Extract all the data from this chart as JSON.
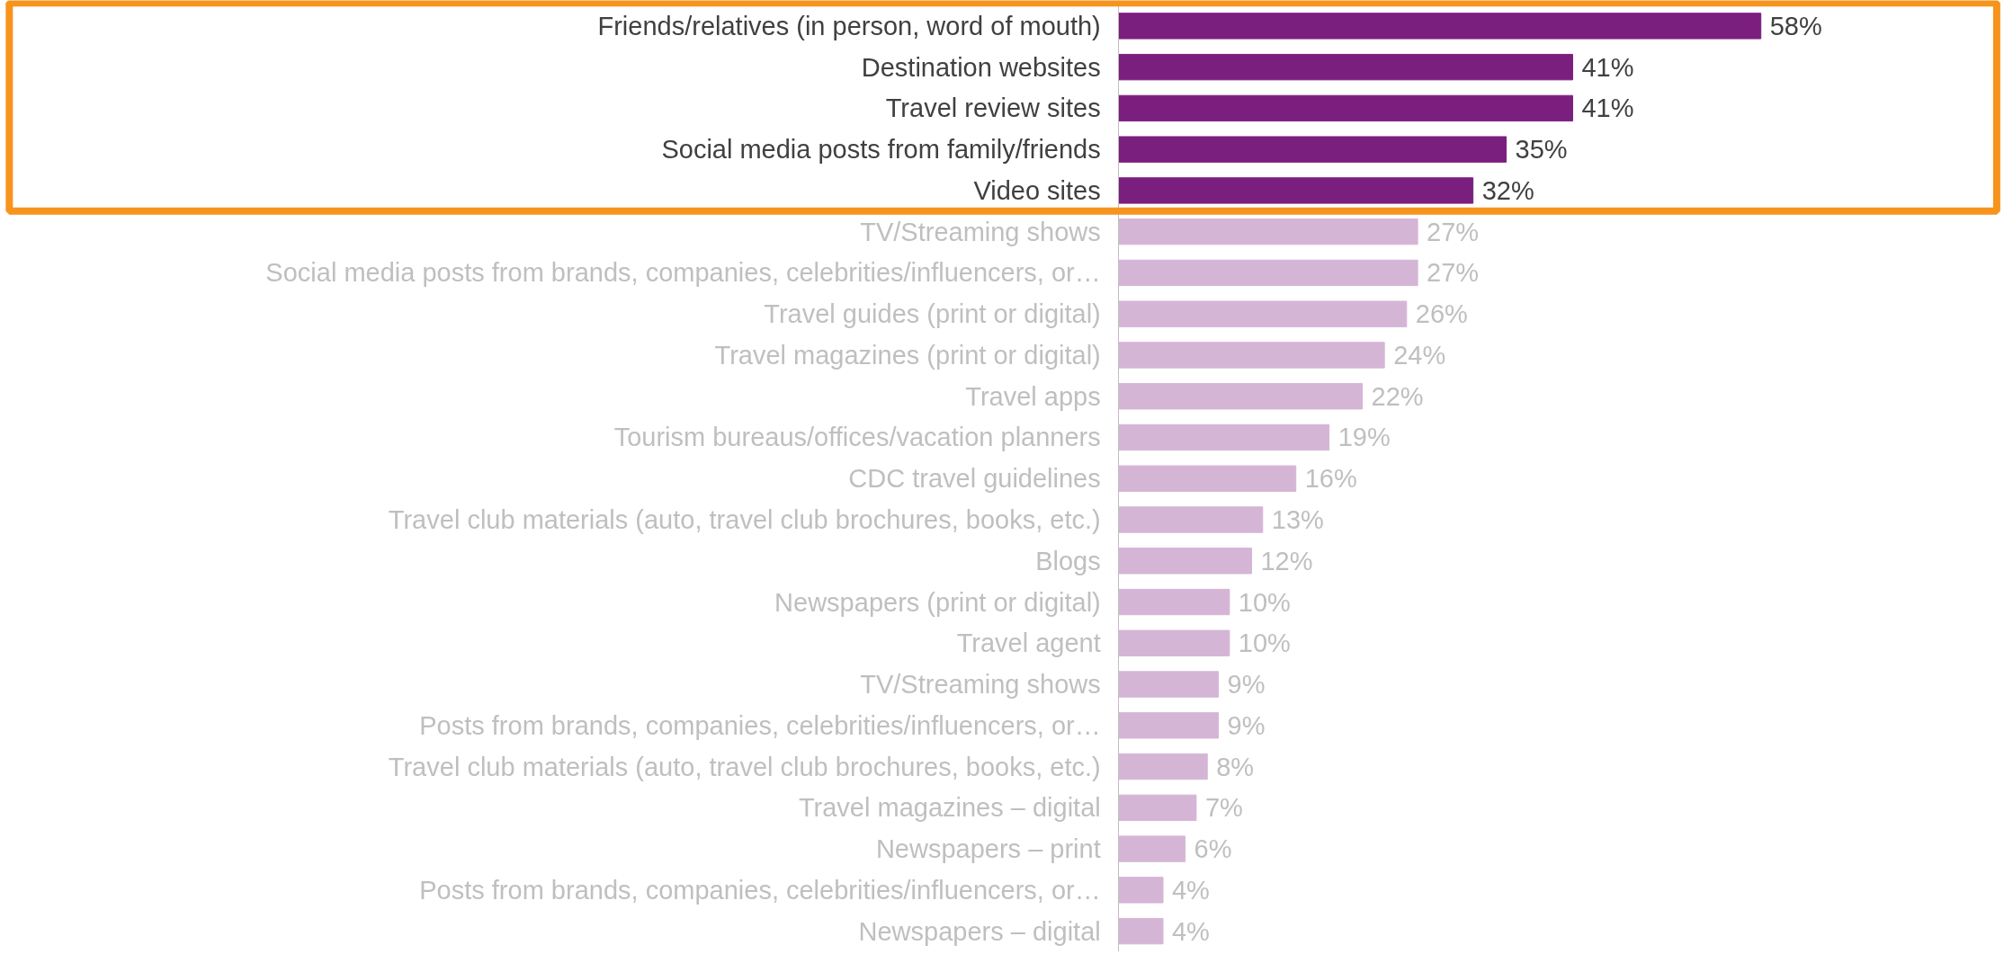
{
  "chart_data": {
    "type": "bar",
    "orientation": "horizontal",
    "value_labels": [
      "58%",
      "41%",
      "41%",
      "35%",
      "32%",
      "27%",
      "27%",
      "26%",
      "24%",
      "22%",
      "19%",
      "16%",
      "13%",
      "12%",
      "10%",
      "10%",
      "9%",
      "9%",
      "8%",
      "7%",
      "6%",
      "4%",
      "4%"
    ],
    "categories": [
      "Friends/relatives (in person, word of mouth)",
      "Destination websites",
      "Travel review sites",
      "Social media posts from family/friends",
      "Video sites",
      "TV/Streaming shows",
      "Social media posts from brands, companies, celebrities/influencers, or…",
      "Travel guides (print or digital)",
      "Travel magazines (print or digital)",
      "Travel apps",
      "Tourism bureaus/offices/vacation planners",
      "CDC travel guidelines",
      "Travel club materials (auto, travel club brochures, books, etc.)",
      "Blogs",
      "Newspapers (print or digital)",
      "Travel agent",
      "TV/Streaming shows",
      "Posts from brands, companies, celebrities/influencers, or…",
      "Travel club materials (auto, travel club brochures, books, etc.)",
      "Travel magazines – digital",
      "Newspapers – print",
      "Posts from brands, companies, celebrities/influencers, or…",
      "Newspapers – digital"
    ],
    "values": [
      58,
      41,
      41,
      35,
      32,
      27,
      27,
      26,
      24,
      22,
      19,
      16,
      13,
      12,
      10,
      10,
      9,
      9,
      8,
      7,
      6,
      4,
      4
    ],
    "colors": [
      "#7b1f7f",
      "#7b1f7f",
      "#7b1f7f",
      "#7b1f7f",
      "#7b1f7f",
      "#d5b5d6",
      "#d5b5d6",
      "#d5b5d6",
      "#d5b5d6",
      "#d5b5d6",
      "#d5b5d6",
      "#d5b5d6",
      "#d5b5d6",
      "#d5b5d6",
      "#d5b5d6",
      "#d5b5d6",
      "#d5b5d6",
      "#d5b5d6",
      "#d5b5d6",
      "#d5b5d6",
      "#d5b5d6",
      "#d5b5d6",
      "#d5b5d6"
    ],
    "grid": false
  }
}
